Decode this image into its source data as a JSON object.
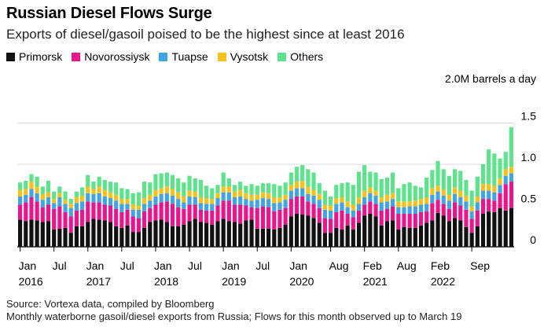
{
  "chart_data": {
    "type": "bar",
    "stacked": true,
    "title": "Russian Diesel Flows Surge",
    "subtitle": "Exports of diesel/gasoil poised to be the highest since at least 2016",
    "ylabel": "2.0M barrels a day",
    "ylim": [
      0,
      2.0
    ],
    "y_ticks": [
      "0",
      "0.5",
      "1.0",
      "1.5"
    ],
    "y_tick_values": [
      0,
      0.5,
      1.0,
      1.5
    ],
    "x_tick_labels": [
      {
        "index": 0,
        "month": "Jan",
        "year": "2016"
      },
      {
        "index": 6,
        "month": "Jul",
        "year": ""
      },
      {
        "index": 12,
        "month": "Jan",
        "year": "2017"
      },
      {
        "index": 18,
        "month": "Jul",
        "year": ""
      },
      {
        "index": 24,
        "month": "Jan",
        "year": "2018"
      },
      {
        "index": 30,
        "month": "Jul",
        "year": ""
      },
      {
        "index": 36,
        "month": "Jan",
        "year": "2019"
      },
      {
        "index": 42,
        "month": "Jul",
        "year": ""
      },
      {
        "index": 48,
        "month": "Jan",
        "year": "2020"
      },
      {
        "index": 55,
        "month": "Aug",
        "year": ""
      },
      {
        "index": 61,
        "month": "Feb",
        "year": "2021"
      },
      {
        "index": 67,
        "month": "Aug",
        "year": ""
      },
      {
        "index": 73,
        "month": "Feb",
        "year": "2022"
      },
      {
        "index": 80,
        "month": "Sep",
        "year": ""
      }
    ],
    "series": [
      {
        "name": "Primorsk",
        "color": "#111111",
        "values": [
          0.33,
          0.31,
          0.33,
          0.32,
          0.3,
          0.31,
          0.21,
          0.22,
          0.23,
          0.17,
          0.25,
          0.25,
          0.3,
          0.34,
          0.33,
          0.32,
          0.3,
          0.25,
          0.23,
          0.26,
          0.18,
          0.18,
          0.23,
          0.3,
          0.32,
          0.33,
          0.3,
          0.25,
          0.25,
          0.27,
          0.31,
          0.34,
          0.3,
          0.29,
          0.27,
          0.31,
          0.34,
          0.31,
          0.3,
          0.28,
          0.32,
          0.33,
          0.22,
          0.22,
          0.22,
          0.21,
          0.23,
          0.27,
          0.37,
          0.4,
          0.39,
          0.38,
          0.35,
          0.29,
          0.17,
          0.17,
          0.23,
          0.21,
          0.26,
          0.21,
          0.29,
          0.38,
          0.4,
          0.37,
          0.26,
          0.31,
          0.32,
          0.21,
          0.24,
          0.23,
          0.23,
          0.26,
          0.29,
          0.32,
          0.41,
          0.38,
          0.31,
          0.35,
          0.32,
          0.24,
          0.17,
          0.25,
          0.4,
          0.43,
          0.42,
          0.47,
          0.44,
          0.47
        ]
      },
      {
        "name": "Novorossiysk",
        "color": "#e8168a",
        "values": [
          0.18,
          0.23,
          0.27,
          0.23,
          0.18,
          0.2,
          0.25,
          0.27,
          0.19,
          0.2,
          0.19,
          0.2,
          0.25,
          0.2,
          0.21,
          0.19,
          0.2,
          0.21,
          0.19,
          0.19,
          0.19,
          0.17,
          0.2,
          0.17,
          0.19,
          0.21,
          0.25,
          0.27,
          0.23,
          0.19,
          0.2,
          0.17,
          0.15,
          0.15,
          0.17,
          0.19,
          0.22,
          0.25,
          0.21,
          0.23,
          0.18,
          0.15,
          0.25,
          0.27,
          0.26,
          0.22,
          0.22,
          0.2,
          0.21,
          0.21,
          0.22,
          0.17,
          0.17,
          0.18,
          0.18,
          0.17,
          0.19,
          0.23,
          0.14,
          0.15,
          0.15,
          0.13,
          0.15,
          0.15,
          0.18,
          0.15,
          0.17,
          0.19,
          0.16,
          0.17,
          0.17,
          0.16,
          0.14,
          0.21,
          0.16,
          0.14,
          0.15,
          0.19,
          0.18,
          0.21,
          0.17,
          0.19,
          0.18,
          0.15,
          0.14,
          0.18,
          0.32,
          0.32
        ]
      },
      {
        "name": "Tuapse",
        "color": "#41a5e5",
        "values": [
          0.1,
          0.09,
          0.1,
          0.1,
          0.09,
          0.09,
          0.07,
          0.11,
          0.1,
          0.1,
          0.09,
          0.1,
          0.1,
          0.1,
          0.11,
          0.1,
          0.09,
          0.1,
          0.1,
          0.07,
          0.08,
          0.1,
          0.09,
          0.09,
          0.1,
          0.1,
          0.1,
          0.1,
          0.1,
          0.08,
          0.1,
          0.09,
          0.08,
          0.08,
          0.08,
          0.09,
          0.1,
          0.1,
          0.09,
          0.1,
          0.08,
          0.08,
          0.1,
          0.1,
          0.1,
          0.1,
          0.09,
          0.1,
          0.1,
          0.1,
          0.1,
          0.09,
          0.1,
          0.1,
          0.1,
          0.1,
          0.1,
          0.1,
          0.08,
          0.08,
          0.08,
          0.09,
          0.1,
          0.1,
          0.1,
          0.09,
          0.09,
          0.08,
          0.08,
          0.09,
          0.09,
          0.09,
          0.09,
          0.1,
          0.1,
          0.1,
          0.1,
          0.1,
          0.1,
          0.1,
          0.09,
          0.1,
          0.1,
          0.1,
          0.1,
          0.1,
          0.1,
          0.1
        ]
      },
      {
        "name": "Vysotsk",
        "color": "#f5c11a",
        "values": [
          0.08,
          0.07,
          0.09,
          0.08,
          0.07,
          0.06,
          0.05,
          0.05,
          0.05,
          0.05,
          0.07,
          0.07,
          0.08,
          0.06,
          0.08,
          0.08,
          0.07,
          0.07,
          0.06,
          0.06,
          0.06,
          0.05,
          0.07,
          0.07,
          0.08,
          0.07,
          0.08,
          0.08,
          0.08,
          0.07,
          0.07,
          0.07,
          0.07,
          0.07,
          0.06,
          0.06,
          0.07,
          0.07,
          0.07,
          0.08,
          0.07,
          0.07,
          0.06,
          0.07,
          0.07,
          0.07,
          0.06,
          0.06,
          0.07,
          0.08,
          0.09,
          0.09,
          0.07,
          0.07,
          0.06,
          0.06,
          0.07,
          0.06,
          0.07,
          0.07,
          0.08,
          0.08,
          0.07,
          0.06,
          0.06,
          0.08,
          0.07,
          0.07,
          0.07,
          0.06,
          0.07,
          0.07,
          0.08,
          0.08,
          0.07,
          0.07,
          0.07,
          0.08,
          0.08,
          0.07,
          0.06,
          0.07,
          0.08,
          0.08,
          0.08,
          0.08,
          0.08,
          0.08
        ]
      },
      {
        "name": "Others",
        "color": "#5ce38b",
        "values": [
          0.09,
          0.1,
          0.09,
          0.12,
          0.09,
          0.14,
          0.09,
          0.08,
          0.1,
          0.06,
          0.07,
          0.1,
          0.14,
          0.09,
          0.12,
          0.12,
          0.13,
          0.15,
          0.13,
          0.12,
          0.14,
          0.16,
          0.2,
          0.15,
          0.19,
          0.18,
          0.17,
          0.17,
          0.17,
          0.17,
          0.18,
          0.16,
          0.21,
          0.15,
          0.13,
          0.1,
          0.17,
          0.1,
          0.08,
          0.1,
          0.09,
          0.13,
          0.11,
          0.11,
          0.12,
          0.16,
          0.14,
          0.15,
          0.15,
          0.18,
          0.19,
          0.21,
          0.21,
          0.13,
          0.17,
          0.11,
          0.16,
          0.17,
          0.23,
          0.24,
          0.31,
          0.31,
          0.19,
          0.22,
          0.22,
          0.21,
          0.25,
          0.16,
          0.21,
          0.23,
          0.18,
          0.14,
          0.24,
          0.22,
          0.3,
          0.25,
          0.23,
          0.22,
          0.24,
          0.19,
          0.19,
          0.24,
          0.24,
          0.42,
          0.39,
          0.24,
          0.21,
          0.48
        ]
      }
    ]
  },
  "footer": {
    "source": "Source: Vortexa data, compiled by Bloomberg",
    "note": "Monthly waterborne gasoil/diesel exports from Russia; Flows for this month observed up to March 19"
  }
}
